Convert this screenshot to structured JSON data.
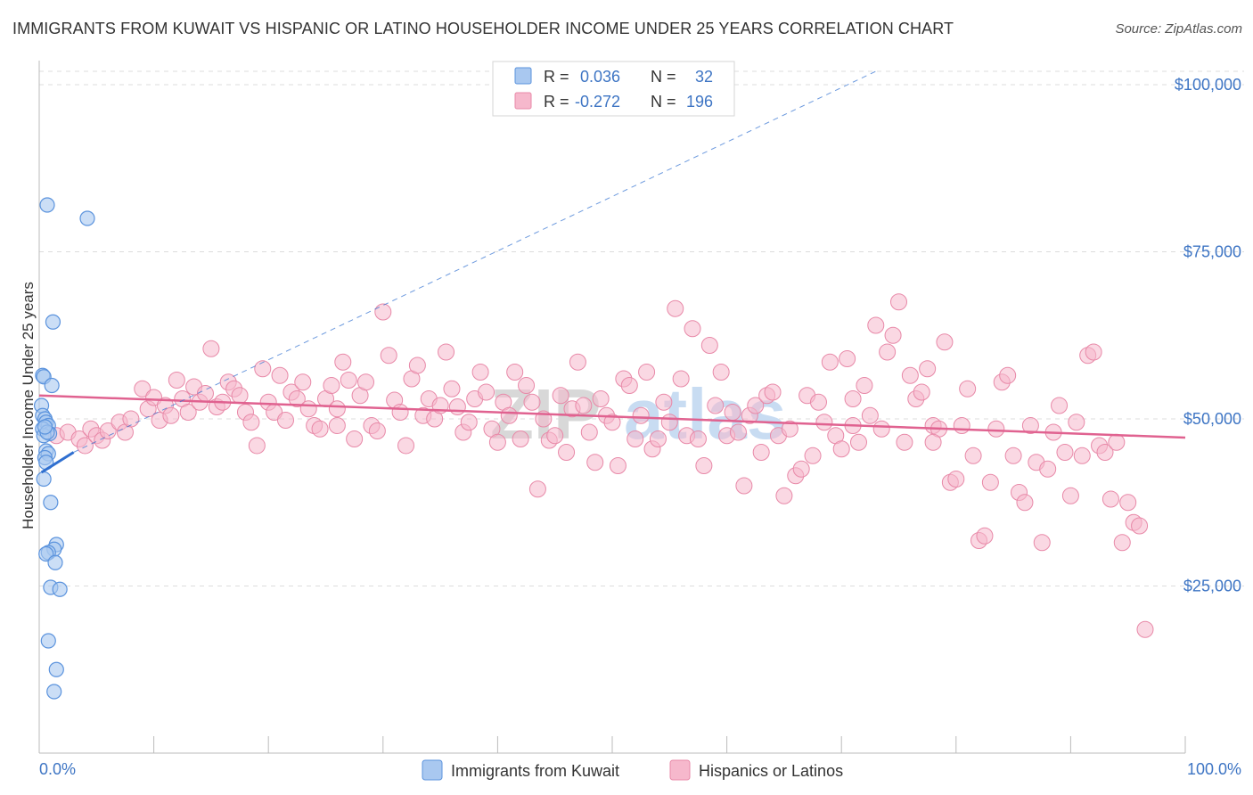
{
  "title": "IMMIGRANTS FROM KUWAIT VS HISPANIC OR LATINO HOUSEHOLDER INCOME UNDER 25 YEARS CORRELATION CHART",
  "source": "Source: ZipAtlas.com",
  "watermark": {
    "zip": "ZIP",
    "atlas": "atlas"
  },
  "colors": {
    "kuwait_fill": "#a9c8f0",
    "kuwait_stroke": "#5b93dd",
    "kuwait_line": "#2f6fd0",
    "hispanic_fill": "#f6b8cc",
    "hispanic_stroke": "#e889a8",
    "hispanic_line": "#e06290",
    "axis_label": "#3e75c4",
    "grid": "#dcdcdc"
  },
  "legend": {
    "rows": [
      {
        "r_label": "R =",
        "r_value": "0.036",
        "n_label": "N =",
        "n_value": "32"
      },
      {
        "r_label": "R =",
        "r_value": "-0.272",
        "n_label": "N =",
        "n_value": "196"
      }
    ]
  },
  "bottom_legend": [
    "Immigrants from Kuwait",
    "Hispanics or Latinos"
  ],
  "chart_data": {
    "type": "scatter",
    "title": "IMMIGRANTS FROM KUWAIT VS HISPANIC OR LATINO HOUSEHOLDER INCOME UNDER 25 YEARS CORRELATION CHART",
    "xlabel": "",
    "ylabel": "Householder Income Under 25 years",
    "xlim": [
      0,
      100
    ],
    "ylim": [
      0,
      102000
    ],
    "x_tick_labels": [
      "0.0%",
      "100.0%"
    ],
    "y_ticks": [
      25000,
      50000,
      75000,
      100000
    ],
    "y_tick_labels": [
      "$25,000",
      "$50,000",
      "$75,000",
      "$100,000"
    ],
    "grid": true,
    "legend_position": "top-center",
    "series": [
      {
        "name": "Immigrants from Kuwait",
        "r": 0.036,
        "n": 32,
        "trend_solid": [
          [
            0.2,
            42000
          ],
          [
            3.0,
            45000
          ]
        ],
        "trend_dashed": [
          [
            3.0,
            45000
          ],
          [
            73,
            102000
          ]
        ],
        "points": [
          [
            0.7,
            82000
          ],
          [
            4.2,
            80000
          ],
          [
            1.2,
            64500
          ],
          [
            0.3,
            56500
          ],
          [
            0.4,
            56300
          ],
          [
            1.1,
            55000
          ],
          [
            0.2,
            52000
          ],
          [
            0.3,
            50500
          ],
          [
            0.5,
            50000
          ],
          [
            0.6,
            49500
          ],
          [
            0.8,
            49000
          ],
          [
            0.3,
            48500
          ],
          [
            0.9,
            47800
          ],
          [
            0.4,
            47500
          ],
          [
            0.6,
            45200
          ],
          [
            0.8,
            44800
          ],
          [
            0.5,
            44200
          ],
          [
            0.6,
            43500
          ],
          [
            0.4,
            41000
          ],
          [
            1.0,
            37500
          ],
          [
            1.5,
            31200
          ],
          [
            1.3,
            30500
          ],
          [
            0.8,
            30000
          ],
          [
            0.6,
            29800
          ],
          [
            1.4,
            28500
          ],
          [
            1.0,
            24800
          ],
          [
            1.8,
            24500
          ],
          [
            0.8,
            16800
          ],
          [
            1.5,
            12500
          ],
          [
            1.3,
            9200
          ],
          [
            0.7,
            48000
          ],
          [
            0.5,
            48800
          ]
        ]
      },
      {
        "name": "Hispanics or Latinos",
        "r": -0.272,
        "n": 196,
        "trend": [
          [
            0,
            53500
          ],
          [
            100,
            47200
          ]
        ],
        "points": [
          [
            1.5,
            47500
          ],
          [
            2.5,
            48000
          ],
          [
            3.5,
            47000
          ],
          [
            4.0,
            46000
          ],
          [
            4.5,
            48500
          ],
          [
            5.0,
            47500
          ],
          [
            5.5,
            46800
          ],
          [
            6.0,
            48200
          ],
          [
            7.0,
            49500
          ],
          [
            7.5,
            48000
          ],
          [
            8.0,
            50000
          ],
          [
            9.0,
            54500
          ],
          [
            9.5,
            51500
          ],
          [
            10.0,
            53200
          ],
          [
            10.5,
            49800
          ],
          [
            11.0,
            52000
          ],
          [
            11.5,
            50500
          ],
          [
            12.0,
            55800
          ],
          [
            12.5,
            53000
          ],
          [
            13.0,
            51000
          ],
          [
            13.5,
            54800
          ],
          [
            14.0,
            52500
          ],
          [
            14.5,
            53800
          ],
          [
            15.0,
            60500
          ],
          [
            15.5,
            51800
          ],
          [
            16.0,
            52500
          ],
          [
            16.5,
            55500
          ],
          [
            17.0,
            54500
          ],
          [
            17.5,
            53500
          ],
          [
            18.0,
            51000
          ],
          [
            18.5,
            49500
          ],
          [
            19.0,
            46000
          ],
          [
            19.5,
            57500
          ],
          [
            20.0,
            52500
          ],
          [
            20.5,
            51000
          ],
          [
            21.0,
            56500
          ],
          [
            21.5,
            49800
          ],
          [
            22.0,
            54000
          ],
          [
            22.5,
            53000
          ],
          [
            23.0,
            55500
          ],
          [
            23.5,
            51500
          ],
          [
            24.0,
            49000
          ],
          [
            24.5,
            48500
          ],
          [
            25.0,
            53000
          ],
          [
            25.5,
            55000
          ],
          [
            26.0,
            51500
          ],
          [
            26.5,
            58500
          ],
          [
            27.0,
            55800
          ],
          [
            27.5,
            47000
          ],
          [
            28.0,
            53500
          ],
          [
            28.5,
            55500
          ],
          [
            29.0,
            49000
          ],
          [
            29.5,
            48200
          ],
          [
            30.0,
            66000
          ],
          [
            30.5,
            59500
          ],
          [
            31.0,
            52800
          ],
          [
            31.5,
            51000
          ],
          [
            32.0,
            46000
          ],
          [
            32.5,
            56000
          ],
          [
            33.0,
            58000
          ],
          [
            33.5,
            50500
          ],
          [
            34.0,
            53000
          ],
          [
            34.5,
            50000
          ],
          [
            35.0,
            52000
          ],
          [
            35.5,
            60000
          ],
          [
            36.0,
            54500
          ],
          [
            36.5,
            51800
          ],
          [
            37.0,
            48000
          ],
          [
            37.5,
            49500
          ],
          [
            38.0,
            53000
          ],
          [
            38.5,
            57000
          ],
          [
            39.0,
            54000
          ],
          [
            39.5,
            48500
          ],
          [
            40.0,
            46500
          ],
          [
            40.5,
            52500
          ],
          [
            41.0,
            50500
          ],
          [
            41.5,
            57000
          ],
          [
            42.0,
            47000
          ],
          [
            42.5,
            55000
          ],
          [
            43.0,
            52500
          ],
          [
            43.5,
            39500
          ],
          [
            44.0,
            50000
          ],
          [
            44.5,
            46800
          ],
          [
            45.0,
            47500
          ],
          [
            45.5,
            53500
          ],
          [
            46.0,
            45000
          ],
          [
            46.5,
            51500
          ],
          [
            47.0,
            58500
          ],
          [
            47.5,
            52000
          ],
          [
            48.0,
            48000
          ],
          [
            48.5,
            43500
          ],
          [
            49.0,
            53000
          ],
          [
            49.5,
            50500
          ],
          [
            50.0,
            49500
          ],
          [
            50.5,
            43000
          ],
          [
            51.0,
            56000
          ],
          [
            51.5,
            55000
          ],
          [
            52.0,
            47000
          ],
          [
            52.5,
            50500
          ],
          [
            53.0,
            57000
          ],
          [
            53.5,
            45500
          ],
          [
            54.0,
            47000
          ],
          [
            54.5,
            52500
          ],
          [
            55.0,
            49500
          ],
          [
            55.5,
            66500
          ],
          [
            56.0,
            56000
          ],
          [
            56.5,
            47500
          ],
          [
            57.0,
            63500
          ],
          [
            57.5,
            47000
          ],
          [
            58.0,
            43000
          ],
          [
            58.5,
            61000
          ],
          [
            59.0,
            52000
          ],
          [
            59.5,
            57000
          ],
          [
            60.0,
            47500
          ],
          [
            60.5,
            51000
          ],
          [
            61.0,
            48000
          ],
          [
            61.5,
            40000
          ],
          [
            62.0,
            50500
          ],
          [
            62.5,
            52000
          ],
          [
            63.0,
            45000
          ],
          [
            63.5,
            53500
          ],
          [
            64.0,
            54000
          ],
          [
            64.5,
            47500
          ],
          [
            65.0,
            38500
          ],
          [
            65.5,
            48500
          ],
          [
            66.0,
            41500
          ],
          [
            66.5,
            42500
          ],
          [
            67.0,
            53500
          ],
          [
            67.5,
            44500
          ],
          [
            68.0,
            52500
          ],
          [
            68.5,
            49500
          ],
          [
            69.0,
            58500
          ],
          [
            69.5,
            47500
          ],
          [
            70.0,
            45500
          ],
          [
            70.5,
            59000
          ],
          [
            71.0,
            53000
          ],
          [
            71.5,
            46500
          ],
          [
            72.0,
            55000
          ],
          [
            72.5,
            50500
          ],
          [
            73.0,
            64000
          ],
          [
            73.5,
            48500
          ],
          [
            74.0,
            60000
          ],
          [
            74.5,
            62500
          ],
          [
            75.0,
            67500
          ],
          [
            75.5,
            46500
          ],
          [
            76.0,
            56500
          ],
          [
            76.5,
            53000
          ],
          [
            77.0,
            54000
          ],
          [
            77.5,
            57500
          ],
          [
            78.0,
            49000
          ],
          [
            78.5,
            48500
          ],
          [
            79.0,
            61500
          ],
          [
            79.5,
            40500
          ],
          [
            80.0,
            41000
          ],
          [
            80.5,
            49000
          ],
          [
            81.0,
            54500
          ],
          [
            81.5,
            44500
          ],
          [
            82.0,
            31800
          ],
          [
            82.5,
            32500
          ],
          [
            83.0,
            40500
          ],
          [
            83.5,
            48500
          ],
          [
            84.0,
            55500
          ],
          [
            84.5,
            56500
          ],
          [
            85.0,
            44500
          ],
          [
            85.5,
            39000
          ],
          [
            86.0,
            37500
          ],
          [
            86.5,
            49000
          ],
          [
            87.0,
            43500
          ],
          [
            87.5,
            31500
          ],
          [
            88.0,
            42500
          ],
          [
            88.5,
            48000
          ],
          [
            89.0,
            52000
          ],
          [
            89.5,
            45000
          ],
          [
            90.0,
            38500
          ],
          [
            90.5,
            49500
          ],
          [
            91.0,
            44500
          ],
          [
            91.5,
            59500
          ],
          [
            92.0,
            60000
          ],
          [
            92.5,
            46000
          ],
          [
            93.0,
            45000
          ],
          [
            93.5,
            38000
          ],
          [
            94.0,
            46500
          ],
          [
            94.5,
            31500
          ],
          [
            95.0,
            37500
          ],
          [
            95.5,
            34500
          ],
          [
            96.0,
            34000
          ],
          [
            96.5,
            18500
          ],
          [
            78.0,
            46500
          ],
          [
            71.0,
            49000
          ],
          [
            26.0,
            49000
          ]
        ]
      }
    ]
  }
}
